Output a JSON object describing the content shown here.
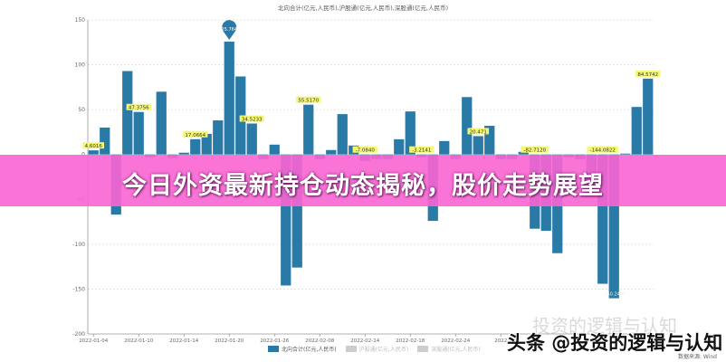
{
  "chart_data": {
    "type": "bar",
    "title": "北向合计(亿元,人民币),沪股通(亿元,人民币),深股通(亿元,人民币)",
    "ylim": [
      -200,
      150
    ],
    "yticks": [
      -200,
      -150,
      -100,
      -50,
      0,
      50,
      100,
      150
    ],
    "grid": true,
    "legend_position": "bottom",
    "tick_labels": [
      "2022-01-04",
      "2022-01-10",
      "2022-01-14",
      "2022-01-20",
      "2022-01-26",
      "2022-02-08",
      "2022-02-14",
      "2022-02-18",
      "2022-02-24",
      "2022"
    ],
    "series": [
      {
        "name": "北向合计(亿元,人民币)",
        "color": "#2a7aa8",
        "values": [
          4.6016,
          30,
          -67,
          93,
          47.3756,
          -3,
          70,
          -4,
          2,
          17.0664,
          23,
          38,
          125.7647,
          87,
          34.5233,
          -5,
          11,
          -146,
          -126,
          55.517,
          -5,
          5,
          45,
          10,
          -7.084,
          -5,
          -5,
          17,
          48,
          -3.2141,
          -74,
          15,
          -5,
          64,
          20.471,
          32,
          -5,
          -5,
          3,
          -82.712,
          -85,
          -110,
          -3,
          -5,
          -40,
          -144.0822,
          -160.2408,
          1,
          53,
          84.5742
        ]
      },
      {
        "name": "沪股通(亿元,人民币)",
        "color": "#c8c8c8",
        "values": []
      },
      {
        "name": "深股通(亿元,人民币)",
        "color": "#c8c8c8",
        "values": []
      }
    ],
    "data_labels": [
      {
        "index": 0,
        "text": "4.6016"
      },
      {
        "index": 4,
        "text": "47.3756"
      },
      {
        "index": 9,
        "text": "17.0664"
      },
      {
        "index": 14,
        "text": "34.5233"
      },
      {
        "index": 19,
        "text": "55.5170"
      },
      {
        "index": 24,
        "text": "-7.0840"
      },
      {
        "index": 29,
        "text": "-3.2141"
      },
      {
        "index": 34,
        "text": "20.471"
      },
      {
        "index": 39,
        "text": "-82.7120"
      },
      {
        "index": 45,
        "text": "-144.0822"
      },
      {
        "index": 49,
        "text": "84.5742"
      }
    ],
    "max_marker": {
      "index": 12,
      "text": "125.7647"
    },
    "min_label": {
      "index": 46,
      "text": "-160.2408"
    }
  },
  "banner": {
    "text": "今日外资最新持仓动态揭秘，股价走势展望",
    "color": "#fa64d2"
  },
  "source": "数据来源: Wind",
  "watermark": {
    "faint": "投资的逻辑与认知",
    "main": "头条 @投资的逻辑与认知"
  }
}
